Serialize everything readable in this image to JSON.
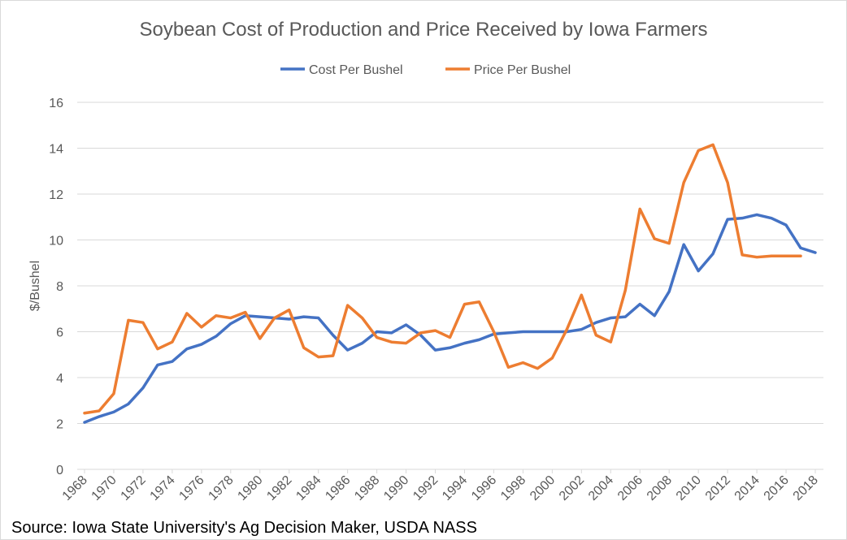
{
  "chart_data": {
    "type": "line",
    "title": "Soybean Cost of Production and Price Received by Iowa Farmers",
    "ylabel": "$/Bushel",
    "source": "Source: Iowa State University's Ag Decision Maker, USDA NASS",
    "x": [
      1968,
      1969,
      1970,
      1971,
      1972,
      1973,
      1974,
      1975,
      1976,
      1977,
      1978,
      1979,
      1980,
      1981,
      1982,
      1983,
      1984,
      1985,
      1986,
      1987,
      1988,
      1989,
      1990,
      1991,
      1992,
      1993,
      1994,
      1995,
      1996,
      1997,
      1998,
      1999,
      2000,
      2001,
      2002,
      2003,
      2004,
      2005,
      2006,
      2007,
      2008,
      2009,
      2010,
      2011,
      2012,
      2013,
      2014,
      2015,
      2016,
      2017,
      2018
    ],
    "xlim": [
      1968,
      2018
    ],
    "xticks": [
      1968,
      1970,
      1972,
      1974,
      1976,
      1978,
      1980,
      1982,
      1984,
      1986,
      1988,
      1990,
      1992,
      1994,
      1996,
      1998,
      2000,
      2002,
      2004,
      2006,
      2008,
      2010,
      2012,
      2014,
      2016,
      2018
    ],
    "ylim": [
      0,
      16
    ],
    "yticks": [
      0,
      2,
      4,
      6,
      8,
      10,
      12,
      14,
      16
    ],
    "grid": true,
    "legend": "top",
    "series": [
      {
        "name": "Cost Per Bushel",
        "color": "#4472c4",
        "values": [
          2.05,
          2.3,
          2.5,
          2.85,
          3.55,
          4.55,
          4.7,
          5.25,
          5.45,
          5.8,
          6.35,
          6.7,
          6.65,
          6.6,
          6.55,
          6.65,
          6.6,
          5.85,
          5.2,
          5.5,
          6.0,
          5.95,
          6.3,
          5.85,
          5.2,
          5.3,
          5.5,
          5.65,
          5.9,
          5.95,
          6.0,
          6.0,
          6.0,
          6.0,
          6.1,
          6.4,
          6.6,
          6.65,
          7.2,
          6.7,
          7.75,
          9.8,
          8.65,
          9.4,
          10.9,
          10.95,
          11.1,
          10.95,
          10.65,
          9.65,
          9.45
        ]
      },
      {
        "name": "Price Per Bushel",
        "color": "#ed7d31",
        "values": [
          2.45,
          2.55,
          3.3,
          6.5,
          6.4,
          5.25,
          5.55,
          6.8,
          6.2,
          6.7,
          6.6,
          6.85,
          5.7,
          6.6,
          6.95,
          5.3,
          4.9,
          4.95,
          7.15,
          6.6,
          5.75,
          5.55,
          5.5,
          5.95,
          6.05,
          5.75,
          7.2,
          7.3,
          6.0,
          4.45,
          4.65,
          4.4,
          4.85,
          6.1,
          7.6,
          5.85,
          5.55,
          7.8,
          11.35,
          10.05,
          9.85,
          12.5,
          13.9,
          14.15,
          12.5,
          9.35,
          9.25,
          9.3,
          9.3,
          9.3,
          null
        ]
      }
    ]
  }
}
